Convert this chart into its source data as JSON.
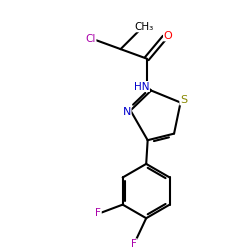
{
  "background_color": "#ffffff",
  "atom_colors": {
    "C": "#000000",
    "N": "#0000cc",
    "O": "#ff0000",
    "S": "#888800",
    "Cl": "#aa00aa",
    "F": "#aa00aa"
  },
  "bond_color": "#000000",
  "figsize": [
    2.5,
    2.5
  ],
  "dpi": 100
}
